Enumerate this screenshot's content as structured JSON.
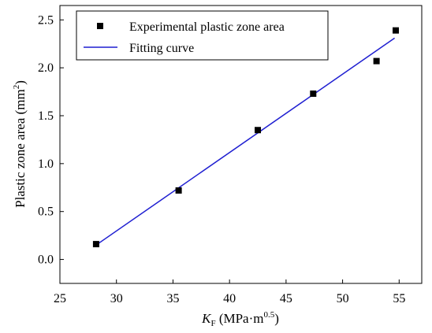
{
  "chart_data": {
    "type": "scatter",
    "title": "",
    "xlabel": {
      "symbol": "K",
      "subscript": "F",
      "units_prefix": " (MPa·m",
      "units_superscript": "0.5",
      "units_suffix": ")"
    },
    "ylabel": {
      "text": "Plastic zone area (mm",
      "superscript": "2",
      "suffix": ")"
    },
    "xlim": [
      25,
      57
    ],
    "ylim": [
      -0.25,
      2.65
    ],
    "xticks": [
      25,
      30,
      35,
      40,
      45,
      50,
      55
    ],
    "yticks": [
      0.0,
      0.5,
      1.0,
      1.5,
      2.0,
      2.5
    ],
    "xtick_labels": [
      "25",
      "30",
      "35",
      "40",
      "45",
      "50",
      "55"
    ],
    "ytick_labels": [
      "0.0",
      "0.5",
      "1.0",
      "1.5",
      "2.0",
      "2.5"
    ],
    "grid": false,
    "legend_position": "top-left",
    "series": [
      {
        "name": "Experimental plastic zone area",
        "kind": "scatter",
        "marker": "square",
        "color": "#000000",
        "x": [
          28.2,
          35.5,
          42.5,
          47.4,
          53.0,
          54.7
        ],
        "y": [
          0.16,
          0.72,
          1.35,
          1.73,
          2.07,
          2.39
        ]
      },
      {
        "name": "Fitting curve",
        "kind": "line",
        "color": "#1f1fd1",
        "x": [
          28.2,
          54.6
        ],
        "y": [
          0.15,
          2.31
        ]
      }
    ]
  }
}
